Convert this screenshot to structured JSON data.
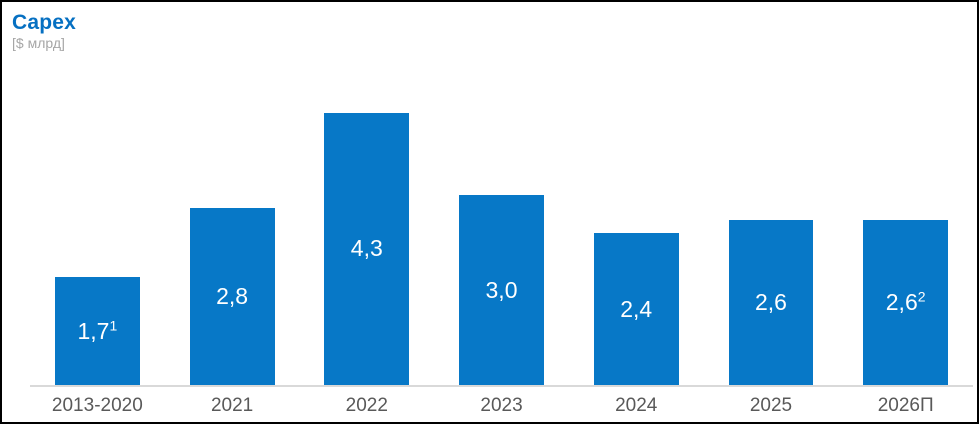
{
  "header": {
    "title": "Capex",
    "subtitle": "[$ млрд]",
    "title_color": "#0670c2",
    "subtitle_color": "#a6a6a6"
  },
  "chart_data": {
    "type": "bar",
    "title": "Capex",
    "unit_label": "[$ млрд]",
    "categories": [
      "2013-2020",
      "2021",
      "2022",
      "2023",
      "2024",
      "2025",
      "2026П"
    ],
    "values": [
      1.7,
      2.8,
      4.3,
      3.0,
      2.4,
      2.6,
      2.6
    ],
    "value_labels": [
      "1,7",
      "2,8",
      "4,3",
      "3,0",
      "2,4",
      "2,6",
      "2,6"
    ],
    "value_label_superscripts": [
      "1",
      "",
      "",
      "",
      "",
      "",
      "2"
    ],
    "xlabel": "",
    "ylabel": "$ млрд",
    "ylim": [
      0,
      4.5
    ],
    "grid": false,
    "legend": false,
    "y_axis_visible": false,
    "bar_color": "#0778c7",
    "value_label_color": "#ffffff",
    "x_tick_color": "#595959",
    "baseline_color": "#d9d9d9",
    "frame_border_color": "#000000"
  }
}
